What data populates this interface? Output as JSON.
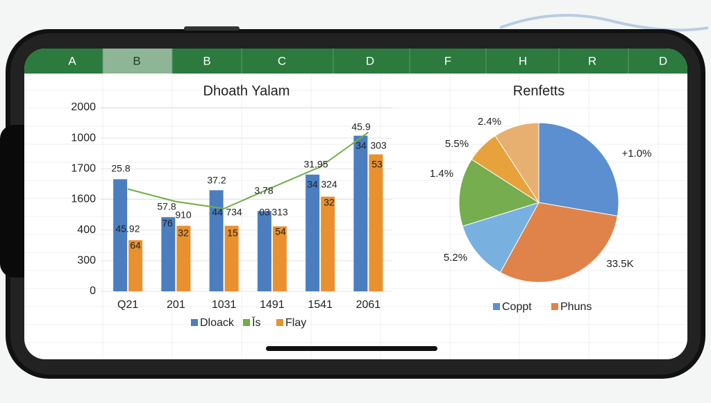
{
  "spreadsheet": {
    "columns": [
      "A",
      "B",
      "B",
      "C",
      "D",
      "F",
      "H",
      "R",
      "D"
    ]
  },
  "chart_data": [
    {
      "type": "bar",
      "title": "Dhoath Yalam",
      "categories": [
        "Q21",
        "201",
        "1031",
        "1491",
        "1541",
        "2061"
      ],
      "series": [
        {
          "name": "Dloack",
          "color": "#4a7ebf",
          "values": [
            36.6,
            24.2,
            33.0,
            26.2,
            38.1,
            50.8
          ]
        },
        {
          "name": "Ǐs",
          "color": "#70ad47",
          "kind": "line",
          "values": [
            33.4,
            29.3,
            27.0,
            33.9,
            40.6,
            51.9
          ]
        },
        {
          "name": "Flay",
          "color": "#e8912e",
          "values": [
            16.7,
            21.4,
            21.4,
            21.2,
            30.9,
            44.7
          ]
        }
      ],
      "annotations": [
        "25.8",
        "45.92",
        "64",
        "57.8",
        "76",
        "910",
        "32",
        "37.2",
        "44",
        "734",
        "15",
        "3.78",
        "03",
        "313",
        "54",
        "31.95",
        "34",
        "324",
        "32",
        "45.9",
        "34",
        "303",
        "53"
      ],
      "ylim": [
        0,
        60
      ],
      "yticks": [
        0,
        {
          "value": 10,
          "label": "300"
        },
        {
          "value": 20,
          "label": "400"
        },
        {
          "value": 30,
          "label": "1600"
        },
        {
          "value": 40,
          "label": "1700"
        },
        {
          "value": 50,
          "label": "1000"
        },
        {
          "value": 60,
          "label": "2000"
        }
      ],
      "grid": true
    },
    {
      "type": "pie",
      "title": "Renfetts",
      "categories": [
        "Coppt",
        "Phuns",
        null,
        null,
        null,
        null
      ],
      "values": [
        27.7,
        30.3,
        12.2,
        13.9,
        6.7,
        9.2
      ],
      "colors": [
        "#5b8fd0",
        "#e0834a",
        "#78b0e0",
        "#76ad4e",
        "#e8a23c",
        "#e8b070"
      ],
      "annotations": [
        "+1.0%",
        "33.5K",
        "5.2%",
        "1.4%",
        "5.5%",
        "2.4%"
      ]
    }
  ]
}
